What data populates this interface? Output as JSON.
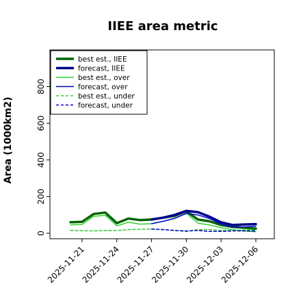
{
  "chart_data": {
    "type": "line",
    "title": "IIEE area metric",
    "ylabel": "Area (1000km2)",
    "xlabel": "",
    "ylim": [
      -30,
      1000
    ],
    "yticks": [
      0,
      200,
      400,
      600,
      800
    ],
    "xticks": [
      "2025-11-21",
      "2025-11-24",
      "2025-11-27",
      "2025-11-30",
      "2025-12-03",
      "2025-12-06"
    ],
    "xtick_colors": [
      "#000000",
      "#000000",
      "#2e8b2e",
      "#000000",
      "#000000",
      "#000000"
    ],
    "x": [
      "2025-11-20",
      "2025-11-21",
      "2025-11-22",
      "2025-11-23",
      "2025-11-24",
      "2025-11-25",
      "2025-11-26",
      "2025-11-27",
      "2025-11-28",
      "2025-11-29",
      "2025-11-30",
      "2025-12-01",
      "2025-12-02",
      "2025-12-03",
      "2025-12-04",
      "2025-12-05",
      "2025-12-06"
    ],
    "legend_position": "upper-left",
    "grid": false,
    "series": [
      {
        "name": "best est., IIEE",
        "color": "#006400",
        "width": 3.5,
        "dash": "",
        "values": [
          60,
          62,
          105,
          113,
          55,
          80,
          72,
          75,
          85,
          95,
          120,
          75,
          65,
          45,
          35,
          30,
          25
        ]
      },
      {
        "name": "forecast, IIEE",
        "color": "#00008b",
        "width": 3.5,
        "dash": "",
        "values": [
          null,
          null,
          null,
          null,
          null,
          null,
          null,
          75,
          85,
          100,
          122,
          115,
          90,
          60,
          45,
          48,
          50
        ]
      },
      {
        "name": "best est., over",
        "color": "#32cd32",
        "width": 1.5,
        "dash": "",
        "values": [
          45,
          48,
          92,
          98,
          40,
          60,
          50,
          52,
          65,
          80,
          110,
          55,
          45,
          30,
          20,
          12,
          8
        ]
      },
      {
        "name": "forecast, over",
        "color": "#0000cd",
        "width": 1.5,
        "dash": "",
        "values": [
          null,
          null,
          null,
          null,
          null,
          null,
          null,
          52,
          65,
          82,
          108,
          100,
          80,
          50,
          32,
          35,
          38
        ]
      },
      {
        "name": "best est., under",
        "color": "#32cd32",
        "width": 1.5,
        "dash": "4,3",
        "values": [
          15,
          14,
          13,
          15,
          15,
          20,
          22,
          23,
          20,
          15,
          10,
          20,
          20,
          15,
          15,
          18,
          17
        ]
      },
      {
        "name": "forecast, under",
        "color": "#0000cd",
        "width": 1.5,
        "dash": "4,3",
        "values": [
          null,
          null,
          null,
          null,
          null,
          null,
          null,
          23,
          20,
          15,
          12,
          15,
          10,
          10,
          13,
          13,
          12
        ]
      }
    ]
  }
}
